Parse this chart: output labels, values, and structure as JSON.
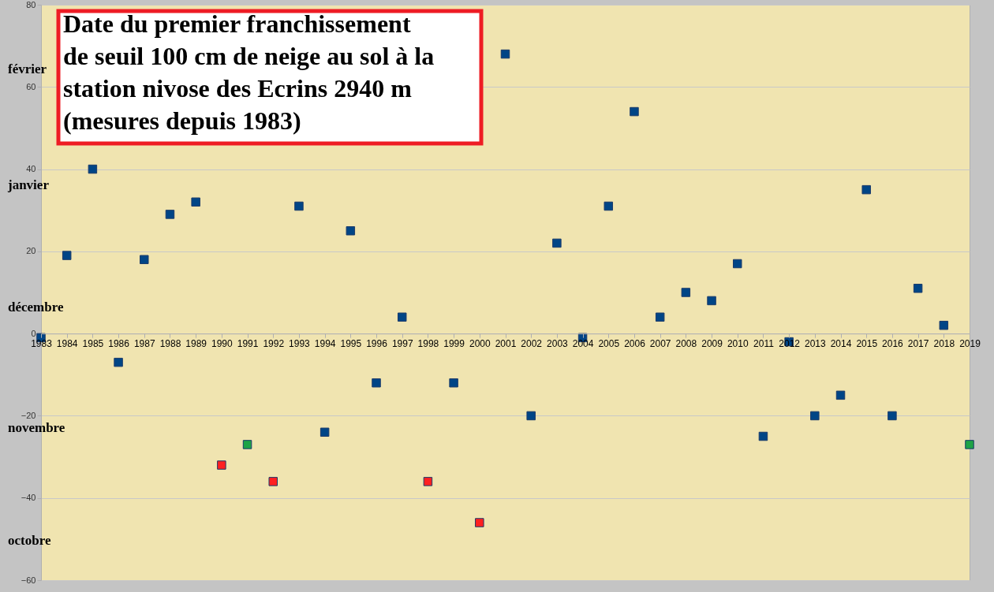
{
  "chart_data": {
    "type": "scatter",
    "title": "Date du premier franchissement\nde seuil 100 cm de neige au sol à la\nstation nivose des Ecrins 2940 m\n(mesures depuis 1983)",
    "x": [
      1983,
      1984,
      1985,
      1986,
      1987,
      1988,
      1989,
      1990,
      1991,
      1992,
      1993,
      1994,
      1995,
      1996,
      1997,
      1998,
      1999,
      2000,
      2001,
      2002,
      2003,
      2004,
      2005,
      2006,
      2007,
      2008,
      2009,
      2010,
      2011,
      2012,
      2013,
      2014,
      2015,
      2016,
      2017,
      2018,
      2019
    ],
    "values": [
      -1,
      19,
      40,
      -7,
      18,
      29,
      32,
      -32,
      -27,
      -36,
      31,
      -24,
      25,
      -12,
      4,
      -36,
      -12,
      -46,
      68,
      -20,
      22,
      -1,
      31,
      54,
      4,
      10,
      8,
      17,
      -25,
      -2,
      -20,
      -15,
      35,
      -20,
      11,
      2,
      -27
    ],
    "colors": [
      "#004586",
      "#004586",
      "#004586",
      "#004586",
      "#004586",
      "#004586",
      "#004586",
      "#ff2020",
      "#1ea346",
      "#ff2020",
      "#004586",
      "#004586",
      "#004586",
      "#004586",
      "#004586",
      "#ff2020",
      "#004586",
      "#ff2020",
      "#004586",
      "#004586",
      "#004586",
      "#004586",
      "#004586",
      "#004586",
      "#004586",
      "#004586",
      "#004586",
      "#004586",
      "#004586",
      "#004586",
      "#004586",
      "#004586",
      "#004586",
      "#004586",
      "#004586",
      "#004586",
      "#1ea346"
    ],
    "marker": "square",
    "xlim": [
      1983,
      2019
    ],
    "xticks": [
      1983,
      1984,
      1985,
      1986,
      1987,
      1988,
      1989,
      1990,
      1991,
      1992,
      1993,
      1994,
      1995,
      1996,
      1997,
      1998,
      1999,
      2000,
      2001,
      2002,
      2003,
      2004,
      2005,
      2006,
      2007,
      2008,
      2009,
      2010,
      2011,
      2012,
      2013,
      2014,
      2015,
      2016,
      2017,
      2018,
      2019
    ],
    "ylim": [
      -60,
      80
    ],
    "yticks": [
      -60,
      -40,
      -20,
      0,
      20,
      40,
      60,
      80
    ],
    "grid": "y",
    "annotations": [
      "février",
      "janvier",
      "décembre",
      "novembre",
      "octobre"
    ]
  }
}
